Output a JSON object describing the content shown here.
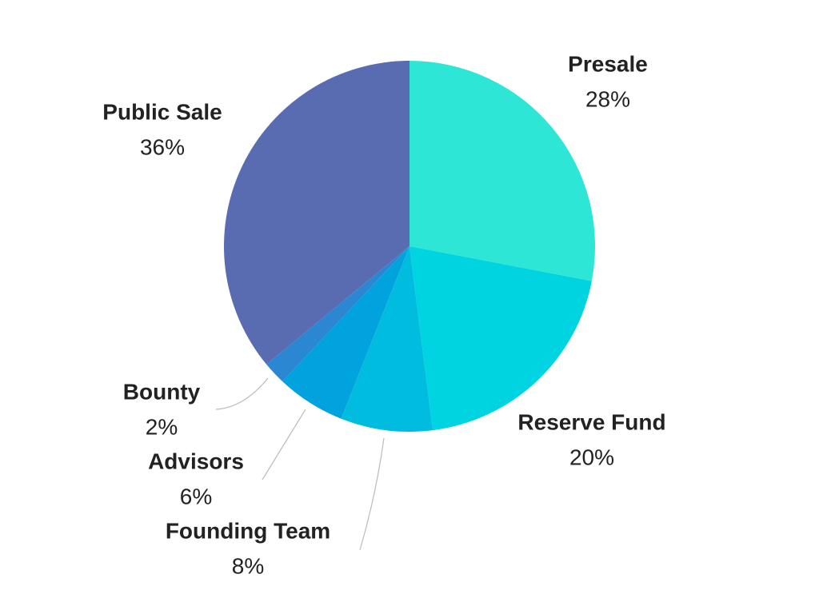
{
  "chart_data": {
    "type": "pie",
    "categories": [
      "Presale",
      "Reserve Fund",
      "Founding Team",
      "Advisors",
      "Bounty",
      "Public Sale"
    ],
    "values": [
      28,
      20,
      8,
      6,
      2,
      36
    ],
    "value_labels": [
      "28%",
      "20%",
      "8%",
      "6%",
      "2%",
      "36%"
    ],
    "colors": [
      "#2ee6d6",
      "#00d4e0",
      "#00bde0",
      "#00a3dd",
      "#2b87d1",
      "#596cb2"
    ]
  }
}
